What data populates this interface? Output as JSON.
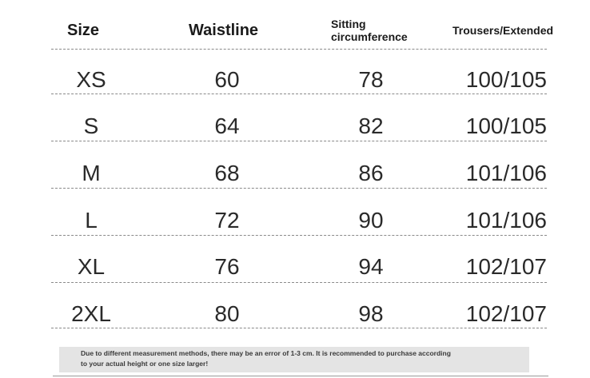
{
  "headers": {
    "size": "Size",
    "waistline": "Waistline",
    "sitting_line1": "Sitting",
    "sitting_line2": "circumference",
    "trousers": "Trousers/Extended"
  },
  "rows": [
    {
      "size": "XS",
      "waistline": "60",
      "sitting": "78",
      "trousers": "100/105"
    },
    {
      "size": "S",
      "waistline": "64",
      "sitting": "82",
      "trousers": "100/105"
    },
    {
      "size": "M",
      "waistline": "68",
      "sitting": "86",
      "trousers": "101/106"
    },
    {
      "size": "L",
      "waistline": "72",
      "sitting": "90",
      "trousers": "101/106"
    },
    {
      "size": "XL",
      "waistline": "76",
      "sitting": "94",
      "trousers": "102/107"
    },
    {
      "size": "2XL",
      "waistline": "80",
      "sitting": "98",
      "trousers": "102/107"
    }
  ],
  "note": {
    "line1": "Due to different measurement methods, there may be an error of 1-3 cm. It is recommended to purchase according",
    "line2": "to your actual height or one size larger!"
  }
}
